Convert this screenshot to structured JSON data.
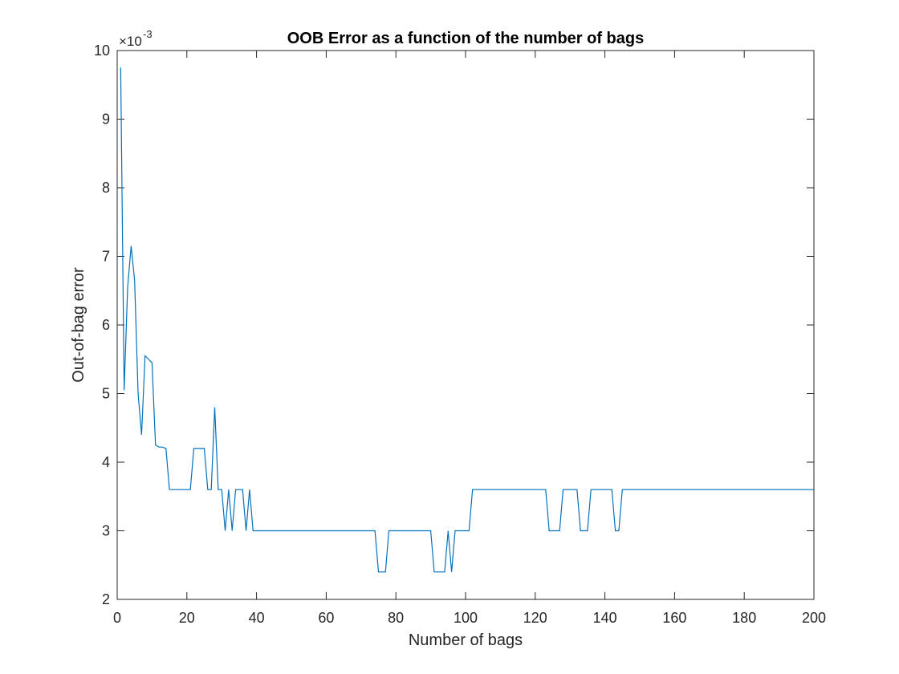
{
  "chart_data": {
    "type": "line",
    "title": "OOB Error as a function of the number of bags",
    "xlabel": "Number of bags",
    "ylabel": "Out-of-bag error",
    "y_exponent_label": "×10",
    "y_exponent_power": "-3",
    "xlim": [
      0,
      200
    ],
    "ylim": [
      2,
      10
    ],
    "xticks": [
      0,
      20,
      40,
      60,
      80,
      100,
      120,
      140,
      160,
      180,
      200
    ],
    "yticks": [
      2,
      3,
      4,
      5,
      6,
      7,
      8,
      9,
      10
    ],
    "grid": false,
    "line_color": "#0072BD",
    "series": [
      {
        "x": [
          1,
          2,
          3,
          4,
          5,
          6,
          7,
          8,
          9,
          10,
          11,
          12,
          13,
          14,
          15,
          16,
          17,
          18,
          19,
          20,
          21,
          22,
          23,
          24,
          25,
          26,
          27,
          28,
          29,
          30,
          31,
          32,
          33,
          34,
          35,
          36,
          37,
          38,
          39,
          40,
          74,
          75,
          77,
          78,
          90,
          91,
          92,
          94,
          95,
          96,
          97,
          100,
          101,
          102,
          123,
          124,
          127,
          128,
          131,
          132,
          133,
          135,
          136,
          142,
          143,
          144,
          145,
          200
        ],
        "y": [
          9.75,
          5.05,
          6.55,
          7.15,
          6.65,
          5.0,
          4.4,
          5.55,
          5.5,
          5.45,
          4.25,
          4.22,
          4.22,
          4.2,
          3.6,
          3.6,
          3.6,
          3.6,
          3.6,
          3.6,
          3.6,
          4.2,
          4.2,
          4.2,
          4.2,
          3.6,
          3.6,
          4.8,
          3.6,
          3.6,
          3.0,
          3.6,
          3.0,
          3.6,
          3.6,
          3.6,
          3.0,
          3.6,
          3.0,
          3.0,
          3.0,
          2.4,
          2.4,
          3.0,
          3.0,
          2.4,
          2.4,
          2.4,
          3.0,
          2.4,
          3.0,
          3.0,
          3.0,
          3.6,
          3.6,
          3.0,
          3.0,
          3.6,
          3.6,
          3.6,
          3.0,
          3.0,
          3.6,
          3.6,
          3.0,
          3.0,
          3.6,
          3.6
        ]
      }
    ]
  }
}
